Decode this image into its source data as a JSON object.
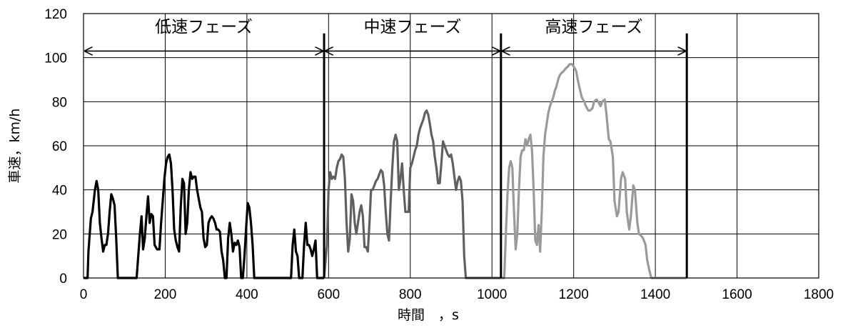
{
  "chart_data": {
    "type": "line",
    "xlabel": "時間　，s",
    "ylabel": "車速，km/h",
    "xlim": [
      0,
      1800
    ],
    "ylim": [
      0,
      120
    ],
    "x_ticks": [
      0,
      200,
      400,
      600,
      800,
      1000,
      1200,
      1400,
      1600,
      1800
    ],
    "y_ticks": [
      0,
      20,
      40,
      60,
      80,
      100,
      120
    ],
    "grid": true,
    "phases": [
      {
        "label": "低速フェーズ",
        "start": 0,
        "end": 589
      },
      {
        "label": "中速フェーズ",
        "start": 589,
        "end": 1022
      },
      {
        "label": "高速フェーズ",
        "start": 1022,
        "end": 1477
      }
    ],
    "phase_boundaries": [
      589,
      1022,
      1477
    ],
    "series": [
      {
        "color": "#000000",
        "x": [
          0,
          10,
          12,
          18,
          22,
          28,
          32,
          36,
          40,
          44,
          48,
          52,
          56,
          60,
          64,
          68,
          72,
          76,
          80,
          84,
          88,
          92,
          96,
          100,
          104,
          108,
          120,
          130,
          138,
          142,
          146,
          150,
          154,
          158,
          162,
          166,
          170,
          174,
          180,
          186,
          190,
          194,
          198,
          202,
          206,
          210,
          214,
          218,
          222,
          226,
          230,
          234,
          238,
          242,
          246,
          250,
          254,
          258,
          262,
          266,
          270,
          274,
          278,
          282,
          286,
          290,
          294,
          298,
          302,
          306,
          310,
          314,
          318,
          322,
          326,
          330,
          334,
          338,
          342,
          346,
          350,
          354,
          358,
          362,
          366,
          370,
          374,
          378,
          382,
          386,
          390,
          394,
          398,
          402,
          406,
          410,
          414,
          418,
          422,
          426,
          430,
          434,
          438,
          442,
          446,
          450,
          455,
          500,
          504,
          508,
          512,
          516,
          520,
          524,
          528,
          532,
          536,
          540,
          544,
          548,
          552,
          556,
          560,
          564,
          568,
          572,
          576,
          580,
          584,
          589
        ],
        "y": [
          0,
          0,
          12,
          27,
          30,
          40,
          44,
          40,
          25,
          18,
          12,
          15,
          15,
          20,
          30,
          38,
          36,
          33,
          18,
          0,
          0,
          0,
          0,
          0,
          0,
          0,
          0,
          0,
          20,
          28,
          13,
          18,
          28,
          37,
          25,
          29,
          28,
          15,
          13,
          13,
          25,
          35,
          45,
          52,
          55,
          56,
          52,
          40,
          22,
          17,
          14,
          12,
          32,
          45,
          43,
          20,
          25,
          40,
          48,
          45,
          46,
          46,
          40,
          36,
          32,
          30,
          18,
          14,
          15,
          25,
          27,
          28,
          27,
          25,
          22,
          22,
          21,
          12,
          8,
          0,
          0,
          18,
          25,
          20,
          12,
          16,
          15,
          17,
          14,
          0,
          0,
          10,
          22,
          34,
          32,
          25,
          15,
          0,
          0,
          0,
          0,
          0,
          0,
          0,
          0,
          0,
          0,
          0,
          0,
          0,
          15,
          22,
          12,
          10,
          0,
          0,
          0,
          15,
          25,
          15,
          15,
          13,
          10,
          13,
          17,
          0,
          0,
          0,
          0,
          0
        ]
      },
      {
        "color": "#606060",
        "x": [
          589,
          596,
          600,
          604,
          608,
          612,
          616,
          620,
          624,
          628,
          632,
          636,
          640,
          644,
          648,
          652,
          656,
          660,
          664,
          668,
          672,
          676,
          680,
          684,
          688,
          692,
          696,
          700,
          704,
          708,
          712,
          716,
          720,
          724,
          728,
          732,
          736,
          740,
          744,
          748,
          752,
          756,
          760,
          764,
          768,
          772,
          776,
          780,
          784,
          788,
          792,
          796,
          800,
          804,
          808,
          812,
          816,
          820,
          824,
          828,
          832,
          836,
          840,
          844,
          848,
          852,
          856,
          860,
          864,
          868,
          872,
          876,
          880,
          884,
          888,
          892,
          896,
          900,
          904,
          908,
          912,
          916,
          920,
          924,
          928,
          932,
          936,
          940,
          944,
          948,
          952,
          956,
          960,
          964,
          968,
          972,
          976,
          980,
          984,
          988,
          992,
          996,
          1000,
          1004,
          1008,
          1012,
          1016,
          1022
        ],
        "y": [
          0,
          15,
          40,
          48,
          45,
          46,
          45,
          50,
          53,
          54,
          56,
          55,
          45,
          25,
          12,
          18,
          38,
          35,
          25,
          20,
          25,
          30,
          33,
          28,
          14,
          14,
          12,
          25,
          40,
          40,
          42,
          44,
          45,
          47,
          49,
          48,
          42,
          30,
          20,
          17,
          35,
          50,
          62,
          65,
          62,
          40,
          45,
          52,
          40,
          30,
          30,
          30,
          50,
          52,
          55,
          58,
          60,
          65,
          68,
          70,
          72,
          75,
          76,
          74,
          70,
          65,
          62,
          55,
          50,
          43,
          43,
          52,
          62,
          60,
          58,
          56,
          55,
          56,
          52,
          46,
          40,
          44,
          46,
          44,
          35,
          10,
          0,
          0,
          0,
          0,
          0,
          0,
          0,
          0,
          0,
          0,
          0,
          0,
          0,
          0,
          0,
          0,
          0,
          0,
          0,
          0,
          0,
          0
        ]
      },
      {
        "color": "#9a9a9a",
        "x": [
          1022,
          1030,
          1034,
          1038,
          1042,
          1046,
          1050,
          1054,
          1058,
          1062,
          1066,
          1070,
          1074,
          1078,
          1082,
          1086,
          1090,
          1094,
          1098,
          1102,
          1106,
          1110,
          1114,
          1118,
          1122,
          1126,
          1130,
          1134,
          1138,
          1142,
          1146,
          1150,
          1154,
          1158,
          1162,
          1166,
          1170,
          1176,
          1180,
          1186,
          1190,
          1196,
          1200,
          1206,
          1210,
          1216,
          1220,
          1226,
          1230,
          1236,
          1240,
          1246,
          1250,
          1256,
          1260,
          1266,
          1270,
          1276,
          1280,
          1286,
          1290,
          1296,
          1300,
          1306,
          1310,
          1316,
          1320,
          1326,
          1330,
          1336,
          1340,
          1346,
          1350,
          1356,
          1360,
          1366,
          1370,
          1376,
          1380,
          1386,
          1390,
          1396,
          1400,
          1406,
          1410,
          1416,
          1420,
          1426,
          1430,
          1436,
          1440,
          1446,
          1450,
          1456,
          1460,
          1466,
          1477
        ],
        "y": [
          0,
          0,
          20,
          38,
          50,
          53,
          50,
          30,
          13,
          20,
          40,
          55,
          58,
          58,
          63,
          60,
          63,
          65,
          58,
          40,
          17,
          15,
          24,
          12,
          30,
          55,
          65,
          70,
          75,
          78,
          80,
          82,
          85,
          87,
          90,
          92,
          93,
          94,
          95,
          96,
          97,
          97,
          96,
          94,
          90,
          85,
          82,
          80,
          78,
          76,
          76,
          77,
          80,
          81,
          80,
          78,
          80,
          81,
          75,
          63,
          62,
          55,
          35,
          28,
          30,
          45,
          48,
          45,
          30,
          22,
          28,
          42,
          40,
          25,
          20,
          19,
          18,
          15,
          8,
          3,
          0,
          0,
          0,
          0,
          0,
          0,
          0,
          0,
          0,
          0,
          0,
          0,
          0,
          0,
          0,
          0,
          0
        ]
      }
    ]
  }
}
